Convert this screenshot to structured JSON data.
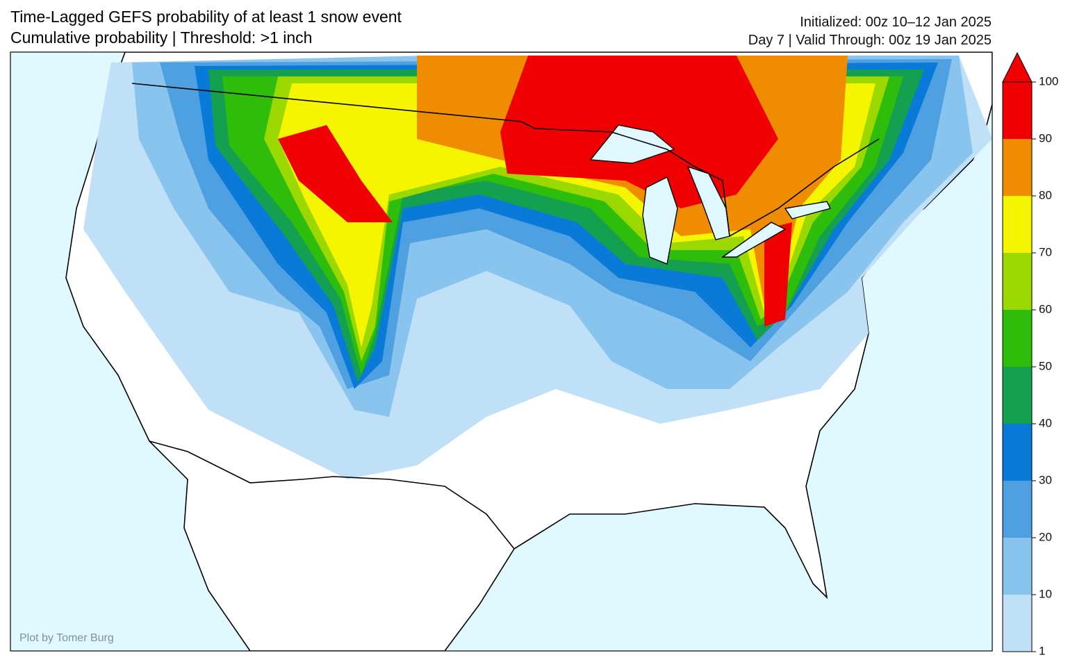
{
  "header": {
    "title": "Time-Lagged GEFS probability of at least 1 snow event",
    "subtitle": "Cumulative probability | Threshold: >1 inch",
    "initialized": "Initialized: 00z 10–12 Jan 2025",
    "valid": "Day 7 | Valid Through: 00z 19 Jan 2025"
  },
  "credit": "Plot by Tomer Burg",
  "colorbar": {
    "ticks": [
      1,
      10,
      20,
      30,
      40,
      50,
      60,
      70,
      80,
      90,
      100
    ],
    "colors": [
      "#c0e0f8",
      "#88c4ee",
      "#4ea0e0",
      "#0a7ad8",
      "#14a050",
      "#2ebd0a",
      "#9ad800",
      "#f5f500",
      "#f08c00",
      "#f00000"
    ]
  }
}
